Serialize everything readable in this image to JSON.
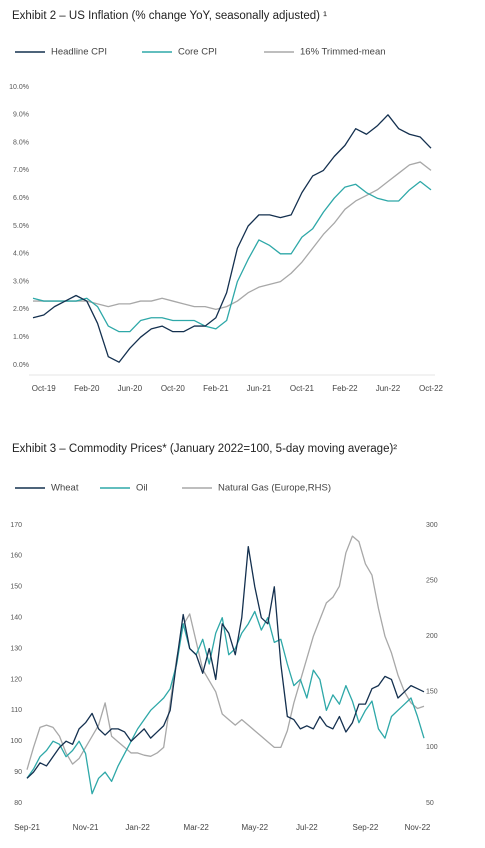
{
  "chart_data": [
    {
      "type": "line",
      "title": "Exhibit 2 – US Inflation  (% change YoY, seasonally adjusted) ¹",
      "categories": [
        null,
        "Oct-19",
        null,
        null,
        null,
        "Feb-20",
        null,
        null,
        null,
        "Jun-20",
        null,
        null,
        null,
        "Oct-20",
        null,
        null,
        null,
        "Feb-21",
        null,
        null,
        null,
        "Jun-21",
        null,
        null,
        null,
        "Oct-21",
        null,
        null,
        null,
        "Feb-22",
        null,
        null,
        null,
        "Jun-22",
        null,
        null,
        null,
        "Oct-22"
      ],
      "series": [
        {
          "name": "Headline CPI",
          "color": "#14304f",
          "values": [
            1.7,
            1.8,
            2.1,
            2.3,
            2.5,
            2.3,
            1.5,
            0.3,
            0.1,
            0.6,
            1.0,
            1.3,
            1.4,
            1.2,
            1.2,
            1.4,
            1.4,
            1.7,
            2.6,
            4.2,
            5.0,
            5.4,
            5.4,
            5.3,
            5.4,
            6.2,
            6.8,
            7.0,
            7.5,
            7.9,
            8.5,
            8.3,
            8.6,
            9.0,
            8.5,
            8.3,
            8.2,
            7.8
          ]
        },
        {
          "name": "Core CPI",
          "color": "#2ea8a8",
          "values": [
            2.4,
            2.3,
            2.3,
            2.3,
            2.3,
            2.4,
            2.1,
            1.4,
            1.2,
            1.2,
            1.6,
            1.7,
            1.7,
            1.6,
            1.6,
            1.6,
            1.4,
            1.3,
            1.6,
            3.0,
            3.8,
            4.5,
            4.3,
            4.0,
            4.0,
            4.6,
            4.9,
            5.5,
            6.0,
            6.4,
            6.5,
            6.2,
            6.0,
            5.9,
            5.9,
            6.3,
            6.6,
            6.3
          ]
        },
        {
          "name": "16% Trimmed-mean",
          "color": "#a8a8a8",
          "values": [
            2.3,
            2.3,
            2.3,
            2.3,
            2.3,
            2.3,
            2.2,
            2.1,
            2.2,
            2.2,
            2.3,
            2.3,
            2.4,
            2.3,
            2.2,
            2.1,
            2.1,
            2.0,
            2.1,
            2.3,
            2.6,
            2.8,
            2.9,
            3.0,
            3.3,
            3.7,
            4.2,
            4.7,
            5.1,
            5.6,
            5.9,
            6.1,
            6.3,
            6.6,
            6.9,
            7.2,
            7.3,
            7.0
          ]
        }
      ],
      "ylim": [
        0,
        10
      ],
      "yticks": [
        {
          "value": 0,
          "label": "0.0%"
        },
        {
          "value": 1,
          "label": "1.0%"
        },
        {
          "value": 2,
          "label": "2.0%"
        },
        {
          "value": 3,
          "label": "3.0%"
        },
        {
          "value": 4,
          "label": "4.0%"
        },
        {
          "value": 5,
          "label": "5.0%"
        },
        {
          "value": 6,
          "label": "6.0%"
        },
        {
          "value": 7,
          "label": "7.0%"
        },
        {
          "value": 8,
          "label": "8.0%"
        },
        {
          "value": 9,
          "label": "9.0%"
        },
        {
          "value": 10,
          "label": "10.0%"
        }
      ],
      "grid": false
    },
    {
      "type": "line",
      "title": "Exhibit 3 – Commodity Prices* (January 2022=100, 5-day moving average)²",
      "categories": [
        "Sep-21",
        null,
        null,
        null,
        null,
        null,
        null,
        null,
        null,
        "Nov-21",
        null,
        null,
        null,
        null,
        null,
        null,
        null,
        "Jan-22",
        null,
        null,
        null,
        null,
        null,
        null,
        null,
        null,
        "Mar-22",
        null,
        null,
        null,
        null,
        null,
        null,
        null,
        null,
        "May-22",
        null,
        null,
        null,
        null,
        null,
        null,
        null,
        "Jul-22",
        null,
        null,
        null,
        null,
        null,
        null,
        null,
        null,
        "Sep-22",
        null,
        null,
        null,
        null,
        null,
        null,
        null,
        "Nov-22",
        null
      ],
      "series": [
        {
          "name": "Wheat",
          "color": "#14304f",
          "values": [
            88,
            90,
            93,
            92,
            95,
            98,
            100,
            99,
            104,
            106,
            109,
            104,
            102,
            104,
            104,
            103,
            100,
            102,
            104,
            101,
            103,
            105,
            110,
            126,
            141,
            130,
            128,
            122,
            130,
            120,
            138,
            135,
            128,
            140,
            163,
            150,
            140,
            138,
            150,
            125,
            108,
            107,
            104,
            105,
            104,
            108,
            105,
            104,
            108,
            103,
            106,
            112,
            112,
            117,
            118,
            121,
            120,
            114,
            116,
            118,
            117,
            116
          ]
        },
        {
          "name": "Oil",
          "color": "#2ea8a8",
          "values": [
            88,
            91,
            95,
            97,
            100,
            99,
            95,
            97,
            100,
            96,
            83,
            88,
            90,
            87,
            92,
            96,
            100,
            104,
            107,
            110,
            112,
            114,
            117,
            125,
            138,
            130,
            128,
            133,
            125,
            135,
            140,
            128,
            130,
            135,
            138,
            142,
            136,
            140,
            132,
            133,
            125,
            118,
            120,
            114,
            123,
            120,
            110,
            115,
            112,
            118,
            113,
            106,
            110,
            113,
            104,
            101,
            108,
            110,
            112,
            114,
            108,
            101
          ]
        },
        {
          "name": "Natural Gas (Europe,RHS)",
          "color": "#a8a8a8",
          "axis": "y2",
          "values": [
            80,
            100,
            118,
            120,
            118,
            110,
            95,
            85,
            90,
            100,
            110,
            120,
            140,
            110,
            105,
            100,
            95,
            95,
            93,
            92,
            95,
            100,
            140,
            180,
            210,
            220,
            195,
            170,
            160,
            150,
            130,
            125,
            120,
            125,
            120,
            115,
            110,
            105,
            100,
            100,
            115,
            140,
            160,
            180,
            200,
            215,
            230,
            235,
            245,
            275,
            290,
            285,
            265,
            255,
            225,
            200,
            185,
            165,
            150,
            140,
            135,
            137
          ]
        }
      ],
      "ylim": [
        80,
        170
      ],
      "yticks": [
        80,
        90,
        100,
        110,
        120,
        130,
        140,
        150,
        160,
        170
      ],
      "y2lim": [
        50,
        300
      ],
      "y2ticks": [
        50,
        100,
        150,
        200,
        250,
        300
      ],
      "grid": false
    }
  ]
}
